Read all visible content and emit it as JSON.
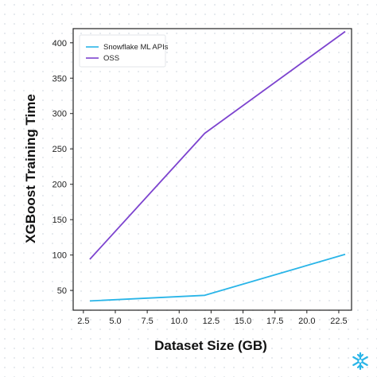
{
  "chart_data": {
    "type": "line",
    "xlabel": "Dataset Size (GB)",
    "ylabel": "XGBoost Training Time",
    "xlim": [
      1.7,
      23.5
    ],
    "ylim": [
      22,
      420
    ],
    "xticks": [
      "2.5",
      "5.0",
      "7.5",
      "10.0",
      "12.5",
      "15.0",
      "17.5",
      "20.0",
      "22.5"
    ],
    "xtick_values": [
      2.5,
      5.0,
      7.5,
      10.0,
      12.5,
      15.0,
      17.5,
      20.0,
      22.5
    ],
    "yticks": [
      "50",
      "100",
      "150",
      "200",
      "250",
      "300",
      "350",
      "400"
    ],
    "ytick_values": [
      50,
      100,
      150,
      200,
      250,
      300,
      350,
      400
    ],
    "x": [
      3,
      12,
      23
    ],
    "series": [
      {
        "name": "Snowflake ML APIs",
        "color": "#29b5e8",
        "values": [
          35,
          43,
          101
        ]
      },
      {
        "name": "OSS",
        "color": "#7d44cf",
        "values": [
          94,
          272,
          416
        ]
      }
    ],
    "legend_position": "top-left",
    "grid": "dotted background",
    "logo": "snowflake-icon"
  }
}
